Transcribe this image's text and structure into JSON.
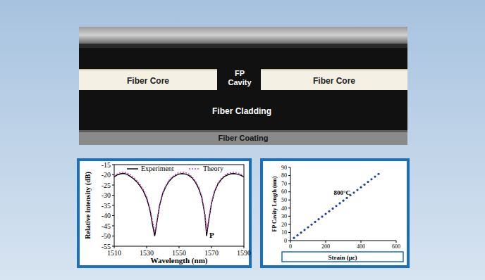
{
  "image": {
    "labels": [
      "Fiber Core",
      "FP Cavity",
      "Fiber Core",
      "Fiber Cladding",
      "Fiber Coating"
    ]
  },
  "chart_data": [
    {
      "type": "line",
      "x_label": "Wavelength (nm)",
      "y_label": "Relative intensity (dB)",
      "x": [
        1510,
        1512,
        1514,
        1516,
        1518,
        1520,
        1522,
        1524,
        1526,
        1528,
        1530,
        1532,
        1534,
        1535,
        1536,
        1538,
        1540,
        1542,
        1544,
        1546,
        1548,
        1550,
        1552,
        1554,
        1556,
        1558,
        1560,
        1562,
        1564,
        1566,
        1567,
        1568,
        1570,
        1572,
        1574,
        1576,
        1578,
        1580,
        1582,
        1584,
        1586,
        1588,
        1590
      ],
      "series": [
        {
          "name": "Experiment",
          "color": "#000000",
          "line_style": "solid",
          "values": [
            -21,
            -20,
            -19.5,
            -19.3,
            -19.8,
            -20.8,
            -22,
            -23.5,
            -25.5,
            -28,
            -31.5,
            -37,
            -46,
            -50,
            -45,
            -35,
            -29,
            -25.5,
            -23,
            -21.3,
            -20.3,
            -19.6,
            -19.4,
            -19.6,
            -20.3,
            -21.5,
            -23.5,
            -26.5,
            -31,
            -40,
            -50,
            -44,
            -34,
            -28,
            -24.5,
            -22.3,
            -20.8,
            -20,
            -19.5,
            -19.4,
            -19.7,
            -20.2,
            -21
          ]
        },
        {
          "name": "Theory",
          "color": "#d040c0",
          "line_style": "dotted",
          "values": [
            -20.5,
            -19.5,
            -18.9,
            -18.7,
            -19.1,
            -20,
            -21.2,
            -22.8,
            -24.8,
            -27.3,
            -30.8,
            -36,
            -44,
            -48,
            -44,
            -34.5,
            -28.5,
            -25,
            -22.5,
            -20.8,
            -19.6,
            -18.9,
            -18.7,
            -18.9,
            -19.6,
            -20.9,
            -22.9,
            -25.8,
            -30.3,
            -39,
            -48,
            -43,
            -33.5,
            -27.5,
            -24,
            -21.8,
            -20.3,
            -19.4,
            -18.9,
            -18.7,
            -19,
            -19.6,
            -20.5
          ]
        }
      ],
      "xlim": [
        1510,
        1590
      ],
      "ylim": [
        -55,
        -15
      ],
      "xticks": [
        1510,
        1530,
        1550,
        1570,
        1590
      ],
      "yticks": [
        -55,
        -50,
        -45,
        -40,
        -35,
        -30,
        -25,
        -20,
        -15
      ],
      "legend": "top",
      "annotations": [
        {
          "text": "P",
          "x": 1567,
          "y": -50
        }
      ]
    },
    {
      "type": "scatter",
      "x_label": "Strain (με)",
      "y_label": "FP Cavity Length (nm)",
      "x": [
        0,
        20,
        40,
        60,
        80,
        100,
        120,
        140,
        160,
        180,
        200,
        220,
        240,
        260,
        280,
        300,
        320,
        340,
        360,
        380,
        400,
        420,
        440,
        460,
        480,
        500
      ],
      "values": [
        0,
        3.3,
        6.6,
        9.8,
        13.1,
        16.4,
        19.7,
        23,
        26.2,
        29.5,
        32.8,
        36.1,
        39.4,
        42.6,
        45.9,
        49.2,
        52.5,
        55.8,
        59,
        62.3,
        65.6,
        68.9,
        72.2,
        75.4,
        78.7,
        82
      ],
      "color": "#1f3f9f",
      "marker": "circle",
      "xlim": [
        0,
        600
      ],
      "ylim": [
        0,
        90
      ],
      "xticks": [
        0,
        200,
        400,
        600
      ],
      "yticks": [
        0,
        10,
        20,
        30,
        40,
        50,
        60,
        70,
        80,
        90
      ],
      "annotations": [
        {
          "text": "800°C",
          "x": 230,
          "y": 58
        }
      ]
    }
  ]
}
